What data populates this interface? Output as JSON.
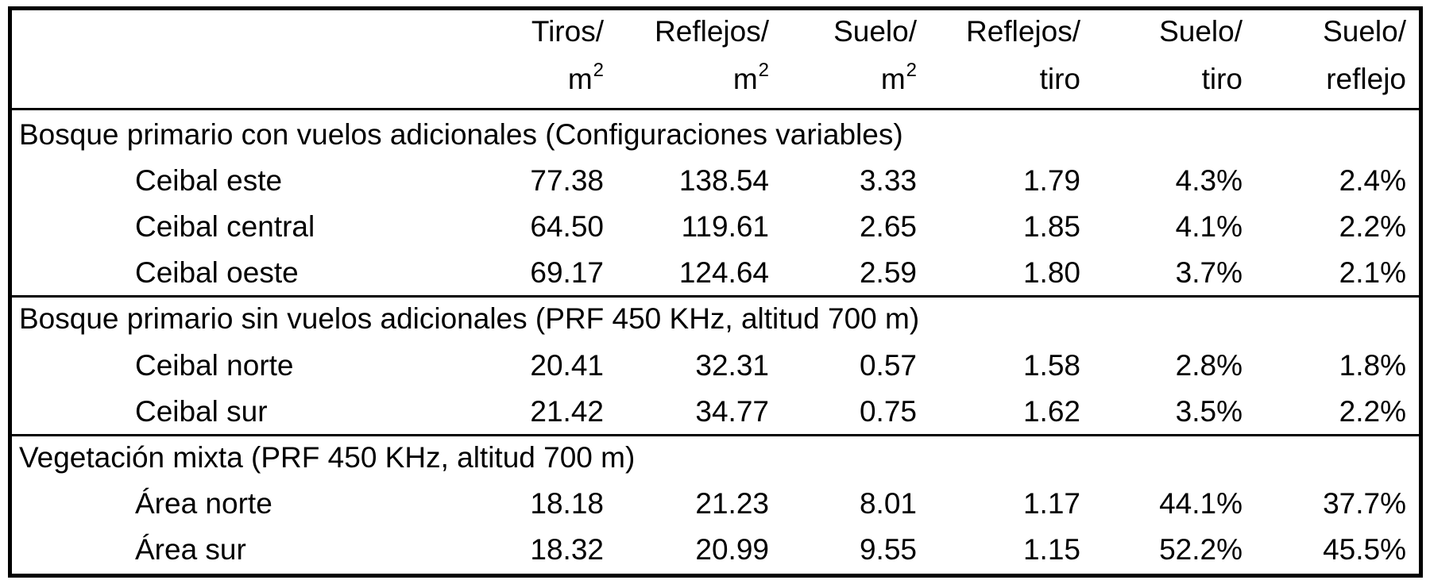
{
  "table": {
    "columns": [
      {
        "top": "Tiros/",
        "bottom": "m",
        "sup": "2"
      },
      {
        "top": "Reflejos/",
        "bottom": "m",
        "sup": "2"
      },
      {
        "top": "Suelo/",
        "bottom": "m",
        "sup": "2"
      },
      {
        "top": "Reflejos/",
        "bottom": "tiro"
      },
      {
        "top": "Suelo/",
        "bottom": "tiro"
      },
      {
        "top": "Suelo/",
        "bottom": "reflejo"
      }
    ],
    "sections": [
      {
        "title": "Bosque primario con vuelos adicionales (Configuraciones variables)",
        "rows": [
          {
            "label": "Ceibal este",
            "cells": [
              "77.38",
              "138.54",
              "3.33",
              "1.79",
              "4.3%",
              "2.4%"
            ]
          },
          {
            "label": "Ceibal central",
            "cells": [
              "64.50",
              "119.61",
              "2.65",
              "1.85",
              "4.1%",
              "2.2%"
            ]
          },
          {
            "label": "Ceibal oeste",
            "cells": [
              "69.17",
              "124.64",
              "2.59",
              "1.80",
              "3.7%",
              "2.1%"
            ]
          }
        ]
      },
      {
        "title": "Bosque primario sin vuelos adicionales (PRF 450 KHz, altitud 700 m)",
        "rows": [
          {
            "label": "Ceibal norte",
            "cells": [
              "20.41",
              "32.31",
              "0.57",
              "1.58",
              "2.8%",
              "1.8%"
            ]
          },
          {
            "label": "Ceibal sur",
            "cells": [
              "21.42",
              "34.77",
              "0.75",
              "1.62",
              "3.5%",
              "2.2%"
            ]
          }
        ]
      },
      {
        "title": "Vegetación mixta (PRF 450 KHz, altitud 700 m)",
        "rows": [
          {
            "label": "Área norte",
            "cells": [
              "18.18",
              "21.23",
              "8.01",
              "1.17",
              "44.1%",
              "37.7%"
            ]
          },
          {
            "label": "Área sur",
            "cells": [
              "18.32",
              "20.99",
              "9.55",
              "1.15",
              "52.2%",
              "45.5%"
            ]
          }
        ]
      }
    ]
  }
}
